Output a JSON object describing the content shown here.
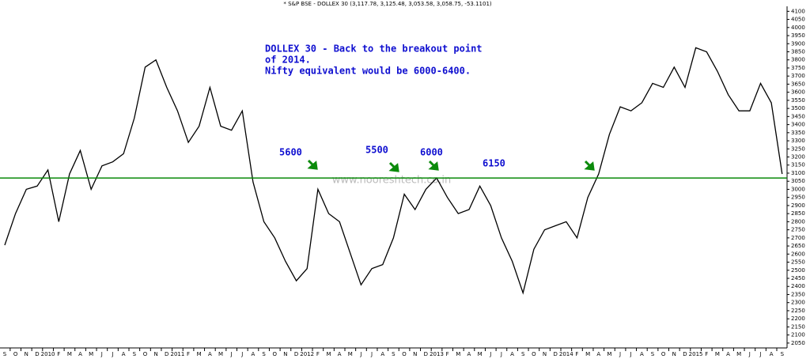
{
  "chart_data": {
    "type": "line",
    "title": "* S&P BSE - DOLLEX 30 (3,117.78, 3,125.48, 3,053.58, 3,058.75, -53.1101)",
    "watermark": "www.nooreshtech.co.in",
    "annotations": [
      "DOLLEX 30 - Back to the breakout point",
      "of 2014.",
      "Nifty equivalent would be 6000-6400.",
      "5600",
      "5500",
      "6000",
      "6150"
    ],
    "hline": 3070,
    "hline_color": "#0a8a0a",
    "categories": [
      "S",
      "O",
      "N",
      "D",
      "2010",
      "F",
      "M",
      "A",
      "M",
      "J",
      "J",
      "A",
      "S",
      "O",
      "N",
      "D",
      "2011",
      "F",
      "M",
      "A",
      "M",
      "J",
      "J",
      "A",
      "S",
      "O",
      "N",
      "D",
      "2012",
      "F",
      "M",
      "A",
      "M",
      "J",
      "J",
      "A",
      "S",
      "O",
      "N",
      "D",
      "2013",
      "F",
      "M",
      "A",
      "M",
      "J",
      "J",
      "A",
      "S",
      "O",
      "N",
      "D",
      "2014",
      "F",
      "M",
      "A",
      "M",
      "J",
      "J",
      "A",
      "S",
      "O",
      "N",
      "D",
      "2015",
      "F",
      "M",
      "A",
      "M",
      "J",
      "J",
      "A",
      "S"
    ],
    "series": [
      {
        "name": "DOLLEX 30",
        "color": "#000000",
        "values": [
          2655,
          2850,
          3000,
          3020,
          3120,
          2800,
          3095,
          3240,
          3000,
          3145,
          3170,
          3220,
          3440,
          3755,
          3800,
          3630,
          3485,
          3290,
          3390,
          3630,
          3390,
          3365,
          3485,
          3045,
          2800,
          2700,
          2555,
          2435,
          2510,
          3000,
          2850,
          2800,
          2605,
          2410,
          2510,
          2535,
          2700,
          2970,
          2875,
          3000,
          3070,
          2950,
          2850,
          2875,
          3020,
          2900,
          2700,
          2555,
          2360,
          2630,
          2750,
          2775,
          2800,
          2700,
          2950,
          3095,
          3340,
          3510,
          3485,
          3535,
          3655,
          3630,
          3755,
          3630,
          3875,
          3850,
          3730,
          3585,
          3485,
          3485,
          3655,
          3535,
          3095
        ]
      }
    ],
    "ylim": [
      2020,
      4170
    ],
    "yticks": [
      2050,
      2100,
      2150,
      2200,
      2250,
      2300,
      2350,
      2400,
      2450,
      2500,
      2550,
      2600,
      2650,
      2700,
      2750,
      2800,
      2850,
      2900,
      2950,
      3000,
      3050,
      3100,
      3150,
      3200,
      3250,
      3300,
      3350,
      3400,
      3450,
      3500,
      3550,
      3600,
      3650,
      3700,
      3750,
      3800,
      3850,
      3900,
      3950,
      4000,
      4050,
      4100
    ]
  }
}
